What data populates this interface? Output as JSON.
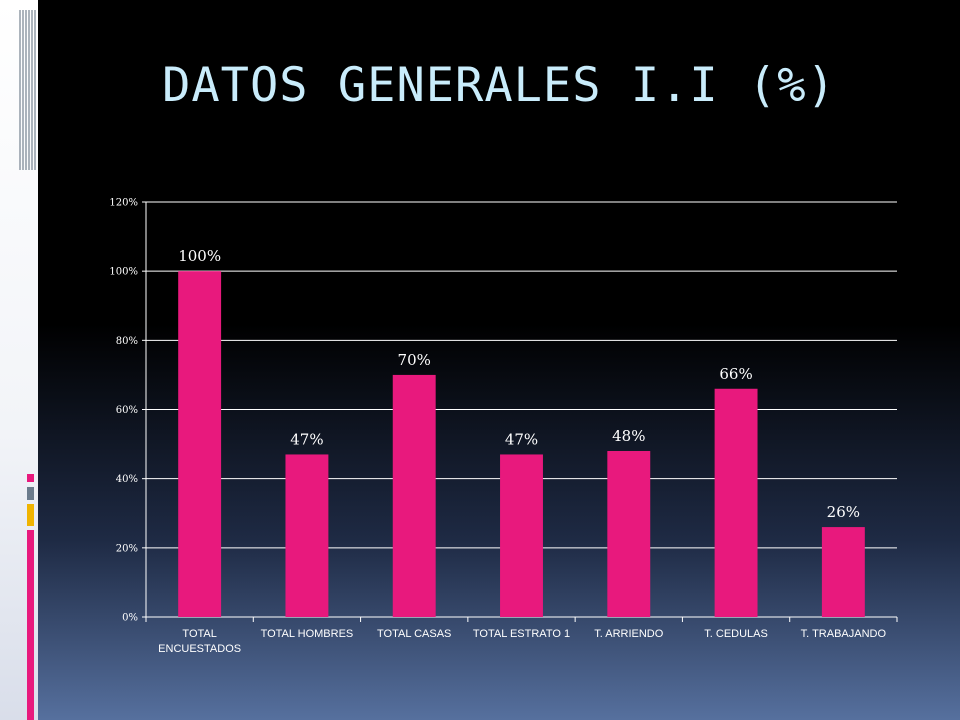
{
  "slide": {
    "title": "DATOS GENERALES I.I (%)"
  },
  "colors": {
    "bar": "#e8197d",
    "title": "#c9ecfb",
    "accent_pink": "#e8197d",
    "accent_slate": "#6b7b8c",
    "accent_gold": "#f0b400"
  },
  "chart_data": {
    "type": "bar",
    "title": "",
    "xlabel": "",
    "ylabel": "",
    "ylim": [
      0,
      120
    ],
    "yticks": [
      0,
      20,
      40,
      60,
      80,
      100,
      120
    ],
    "ytick_labels": [
      "0%",
      "20%",
      "40%",
      "60%",
      "80%",
      "100%",
      "120%"
    ],
    "categories": [
      [
        "TOTAL",
        "ENCUESTADOS"
      ],
      [
        "TOTAL HOMBRES"
      ],
      [
        "TOTAL CASAS"
      ],
      [
        "TOTAL ESTRATO 1"
      ],
      [
        "T. ARRIENDO"
      ],
      [
        "T. CEDULAS"
      ],
      [
        "T. TRABAJANDO"
      ]
    ],
    "values": [
      100,
      47,
      70,
      47,
      48,
      66,
      26
    ],
    "data_labels": [
      "100%",
      "47%",
      "70%",
      "47%",
      "48%",
      "66%",
      "26%"
    ],
    "grid": true,
    "legend": "none"
  }
}
